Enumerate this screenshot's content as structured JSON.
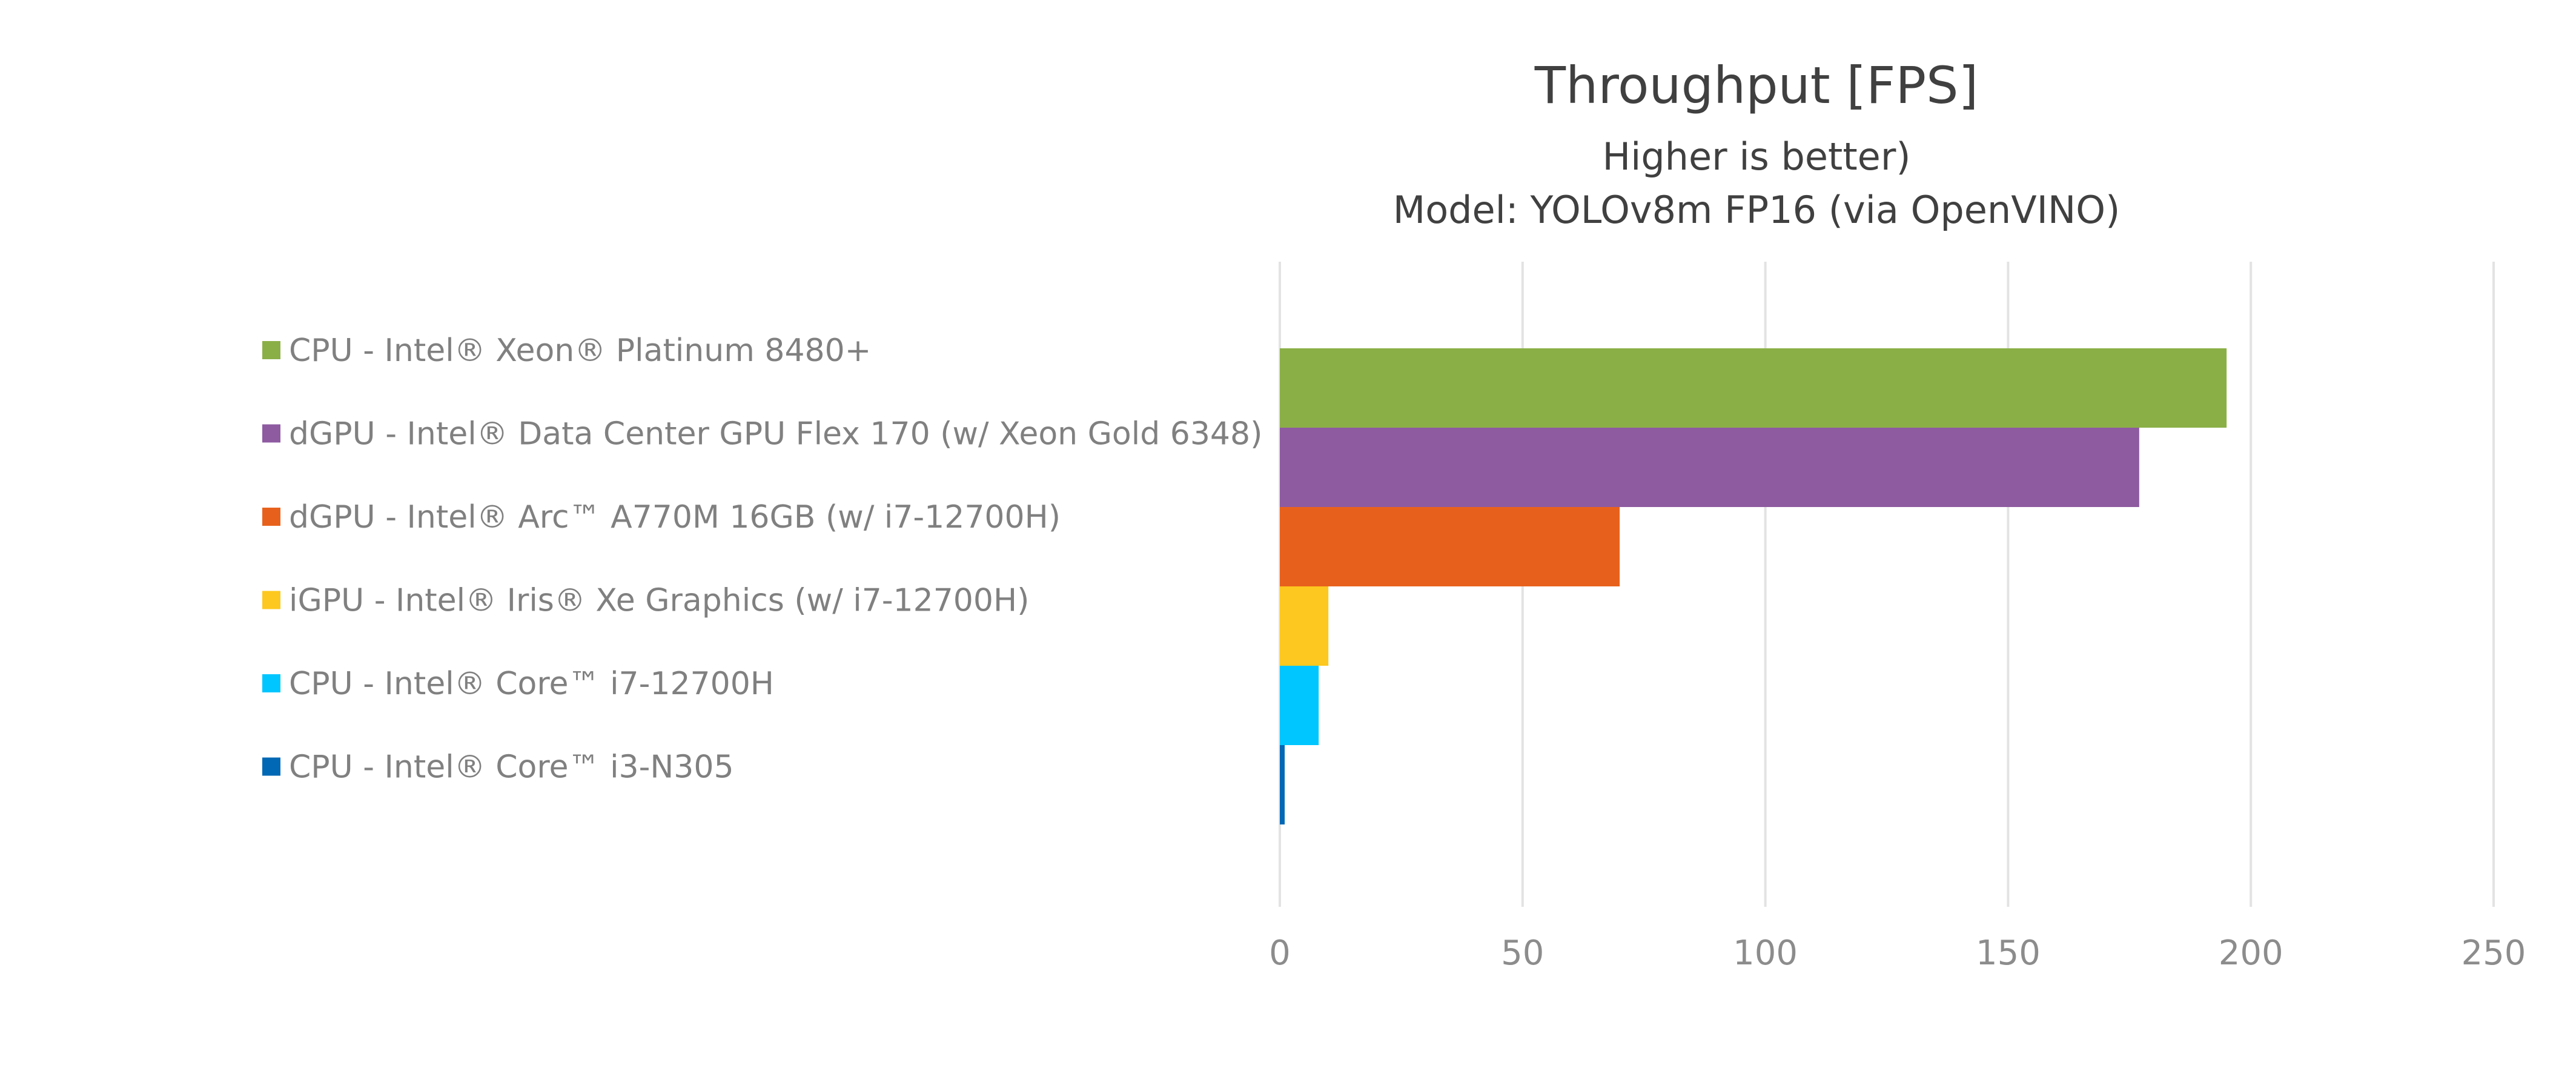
{
  "chart_data": {
    "type": "bar",
    "orientation": "horizontal",
    "title": "Throughput [FPS]",
    "subtitle_lines": [
      "Higher is better)",
      "Model: YOLOv8m FP16 (via OpenVINO)"
    ],
    "xlabel": "",
    "ylabel": "",
    "xlim": [
      0,
      250
    ],
    "xticks": [
      0,
      50,
      100,
      150,
      200,
      250
    ],
    "grid": true,
    "legend_position": "left",
    "series": [
      {
        "name": "CPU - Intel® Xeon® Platinum 8480+",
        "value": 195,
        "color": "#8BAF47"
      },
      {
        "name": "dGPU - Intel® Data Center GPU Flex 170 (w/ Xeon Gold 6348)",
        "value": 177,
        "color": "#8E5BA1"
      },
      {
        "name": "dGPU - Intel® Arc™ A770M 16GB (w/ i7-12700H)",
        "value": 70,
        "color": "#E8611C"
      },
      {
        "name": "iGPU - Intel® Iris® Xe Graphics (w/ i7-12700H)",
        "value": 10,
        "color": "#FDC81F"
      },
      {
        "name": "CPU - Intel® Core™ i7-12700H",
        "value": 8,
        "color": "#00C6FF"
      },
      {
        "name": "CPU - Intel® Core™ i3-N305",
        "value": 1,
        "color": "#0068B5"
      }
    ]
  }
}
